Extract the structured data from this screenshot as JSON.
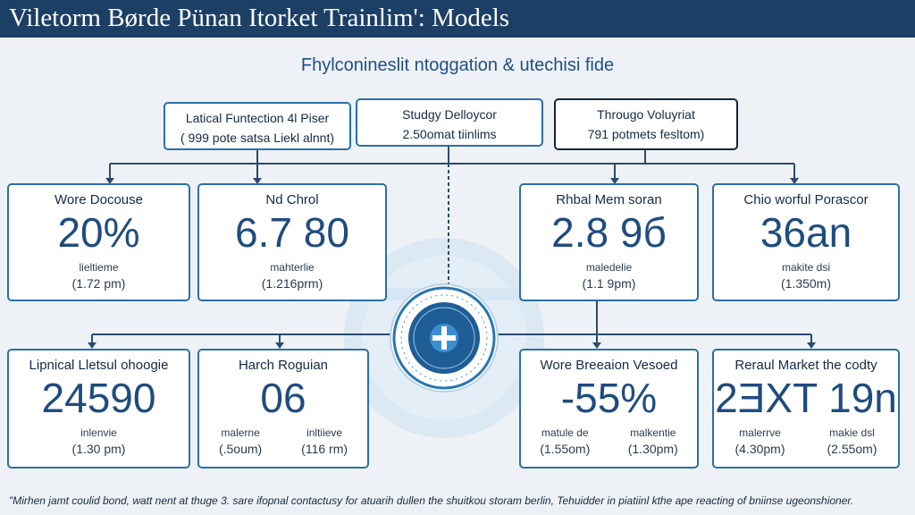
{
  "header": {
    "title": "Viletorm Børde Pünan Itorket Trainlim': Models"
  },
  "subtitle": "Fhylconineslit ntoggation & utechisi fide",
  "top_boxes": [
    {
      "line1": "Latical Funtection 4l Piser",
      "line2": "( 999 pote satsa Liekl alnnt)"
    },
    {
      "line1": "Studgy Delloycor",
      "line2": "2.50omat tiinlims"
    },
    {
      "line1": "Througo Voluyriat",
      "line2": "791 potmets fesltom)"
    }
  ],
  "cards_top": [
    {
      "name": "Wore Docouse",
      "value": "20%",
      "sub": "lieltieme",
      "time": "(1.72 pm)"
    },
    {
      "name": "Nd Chrol",
      "value": "6.7 80",
      "sub": "mahterlie",
      "time": "(1.216prm)"
    },
    {
      "name": "Rhbal Mem soran",
      "value": "2.8 9б",
      "sub": "maledelie",
      "time": "(1.1 9pm)"
    },
    {
      "name": "Chio worful Porascor",
      "value": "36an",
      "sub": "makite dsi",
      "time": "(1.350m)"
    }
  ],
  "cards_bottom": [
    {
      "name": "Lipnical Lletsul ohoogie",
      "value": "24590",
      "sub": "inlenvie",
      "time": "(1.30 pm)"
    },
    {
      "name": "Harch Roguian",
      "value": "06",
      "items": [
        {
          "sub": "malerne",
          "time": "(.5oum)"
        },
        {
          "sub": "inltiieve",
          "time": "(116 rm)"
        }
      ]
    },
    {
      "name": "Wore Breeaion Vesoed",
      "value": "-55%",
      "items": [
        {
          "sub": "matule de",
          "time": "(1.55om)"
        },
        {
          "sub": "malkentie",
          "time": "(1.30pm)"
        }
      ]
    },
    {
      "name": "Reraul Market the codty",
      "value": "2ƎXT 19n",
      "items": [
        {
          "sub": "malerrve",
          "time": "(4.30pm)"
        },
        {
          "sub": "makie dsl",
          "time": "(2.55om)"
        }
      ]
    }
  ],
  "footer": "\"Mirhen jamt coulid bond, watt nent at thuge 3. sare ifopnal contactusy for atuarih dullen the shuitkou storam berlin, Tehuidder in piatiinl kthe ape reacting of bniinse ugeonshioner."
}
